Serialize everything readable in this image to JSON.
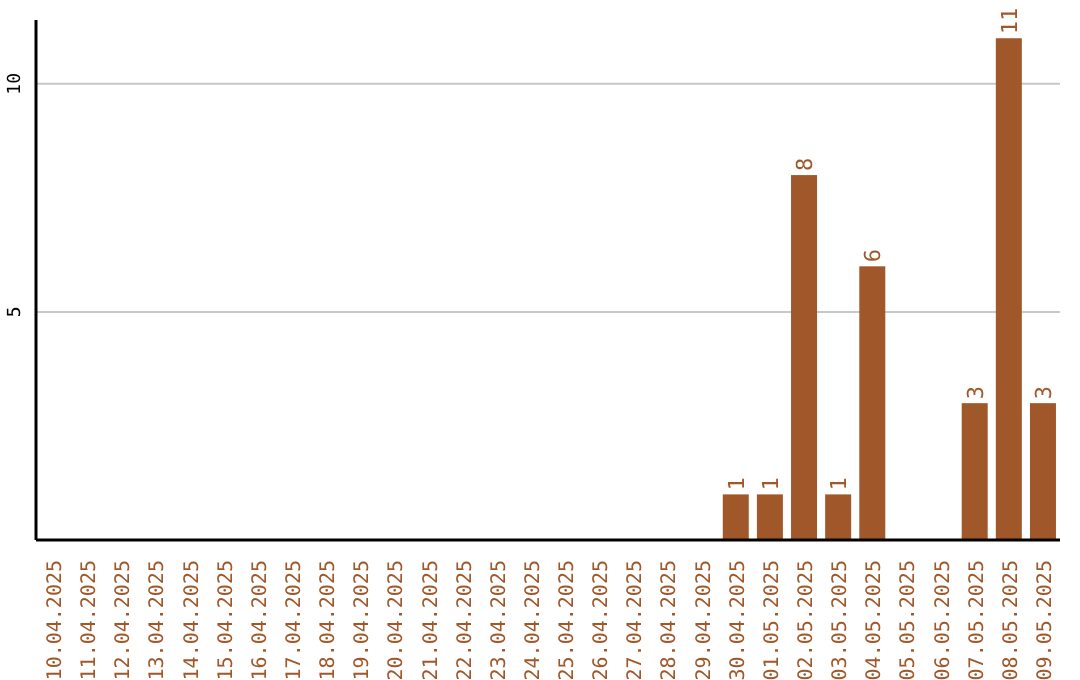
{
  "chart_data": {
    "type": "bar",
    "categories": [
      "10.04.2025",
      "11.04.2025",
      "12.04.2025",
      "13.04.2025",
      "14.04.2025",
      "15.04.2025",
      "16.04.2025",
      "17.04.2025",
      "18.04.2025",
      "19.04.2025",
      "20.04.2025",
      "21.04.2025",
      "22.04.2025",
      "23.04.2025",
      "24.04.2025",
      "25.04.2025",
      "26.04.2025",
      "27.04.2025",
      "28.04.2025",
      "29.04.2025",
      "30.04.2025",
      "01.05.2025",
      "02.05.2025",
      "03.05.2025",
      "04.05.2025",
      "05.05.2025",
      "06.05.2025",
      "07.05.2025",
      "08.05.2025",
      "09.05.2025"
    ],
    "values": [
      0,
      0,
      0,
      0,
      0,
      0,
      0,
      0,
      0,
      0,
      0,
      0,
      0,
      0,
      0,
      0,
      0,
      0,
      0,
      0,
      1,
      1,
      8,
      1,
      6,
      0,
      0,
      3,
      11,
      3
    ],
    "value_labels": [
      null,
      null,
      null,
      null,
      null,
      null,
      null,
      null,
      null,
      null,
      null,
      null,
      null,
      null,
      null,
      null,
      null,
      null,
      null,
      null,
      "1",
      "1",
      "8",
      "1",
      "6",
      null,
      null,
      "3",
      "11",
      "3"
    ],
    "color": "#a0582a",
    "ylim": [
      0,
      11.4
    ],
    "yticks": [
      5,
      10
    ],
    "grid": "y"
  }
}
